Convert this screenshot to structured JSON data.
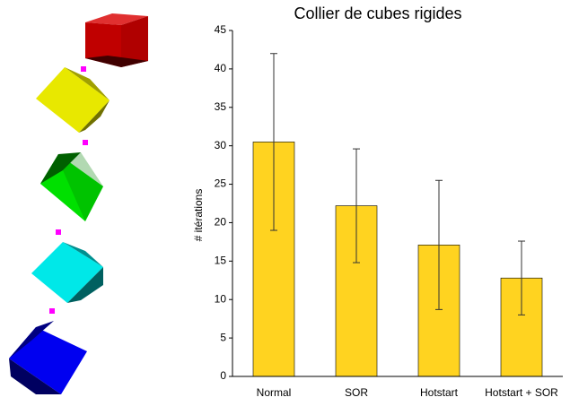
{
  "chart_data": {
    "type": "bar",
    "title": "Collier de cubes rigides",
    "y_label": "# itérations",
    "categories": [
      "Normal",
      "SOR",
      "Hotstart",
      "Hotstart + SOR"
    ],
    "values": [
      30.5,
      22.2,
      17.1,
      12.8
    ],
    "errors": [
      11.5,
      7.4,
      8.4,
      4.8
    ],
    "color": "#ffd320",
    "ylim": [
      0,
      45
    ],
    "yticks": [
      0,
      5,
      10,
      15,
      20,
      25,
      30,
      35,
      40,
      45
    ],
    "grid": false
  }
}
